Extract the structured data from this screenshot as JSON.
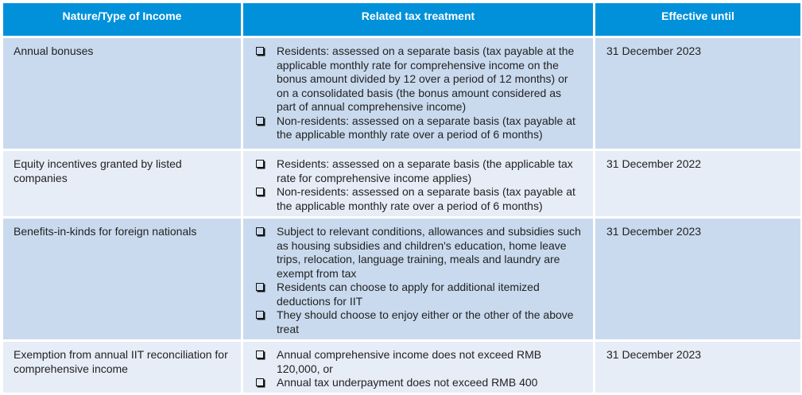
{
  "header": {
    "col1": "Nature/Type of Income",
    "col2": "Related tax treatment",
    "col3": "Effective until"
  },
  "colors": {
    "header": "#0091DA",
    "row_dark": "#C9DAEE",
    "row_light": "#E6EDF7"
  },
  "rows": [
    {
      "type": "Annual bonuses",
      "treatment": [
        "Residents: assessed on a separate basis (tax payable at the applicable monthly rate for comprehensive income on the bonus amount divided by 12 over a period of 12 months) or on a consolidated basis (the bonus amount considered as part of annual comprehensive income)",
        "Non-residents: assessed on a separate basis (tax payable at the applicable monthly rate over a period of 6 months)"
      ],
      "effective": "31 December 2023"
    },
    {
      "type": "Equity incentives granted by listed companies",
      "treatment": [
        "Residents: assessed on a separate basis (the applicable tax rate for comprehensive income applies)",
        "Non-residents: assessed on a separate basis (tax payable at the applicable monthly rate over a period of 6 months)"
      ],
      "effective": "31 December 2022"
    },
    {
      "type": "Benefits-in-kinds for foreign nationals",
      "treatment": [
        "Subject to relevant conditions, allowances and subsidies such as housing subsidies and children's education, home leave trips, relocation, language training, meals and laundry are exempt from tax",
        "Residents can choose to apply for additional itemized deductions for IIT",
        "They should choose to enjoy either or the other of the above treat"
      ],
      "effective": "31 December 2023"
    },
    {
      "type": "Exemption from annual IIT  reconciliation for comprehensive income",
      "treatment": [
        "Annual comprehensive income does not exceed RMB 120,000, or",
        "Annual tax underpayment does not exceed RMB 400"
      ],
      "effective": "31 December 2023"
    }
  ]
}
